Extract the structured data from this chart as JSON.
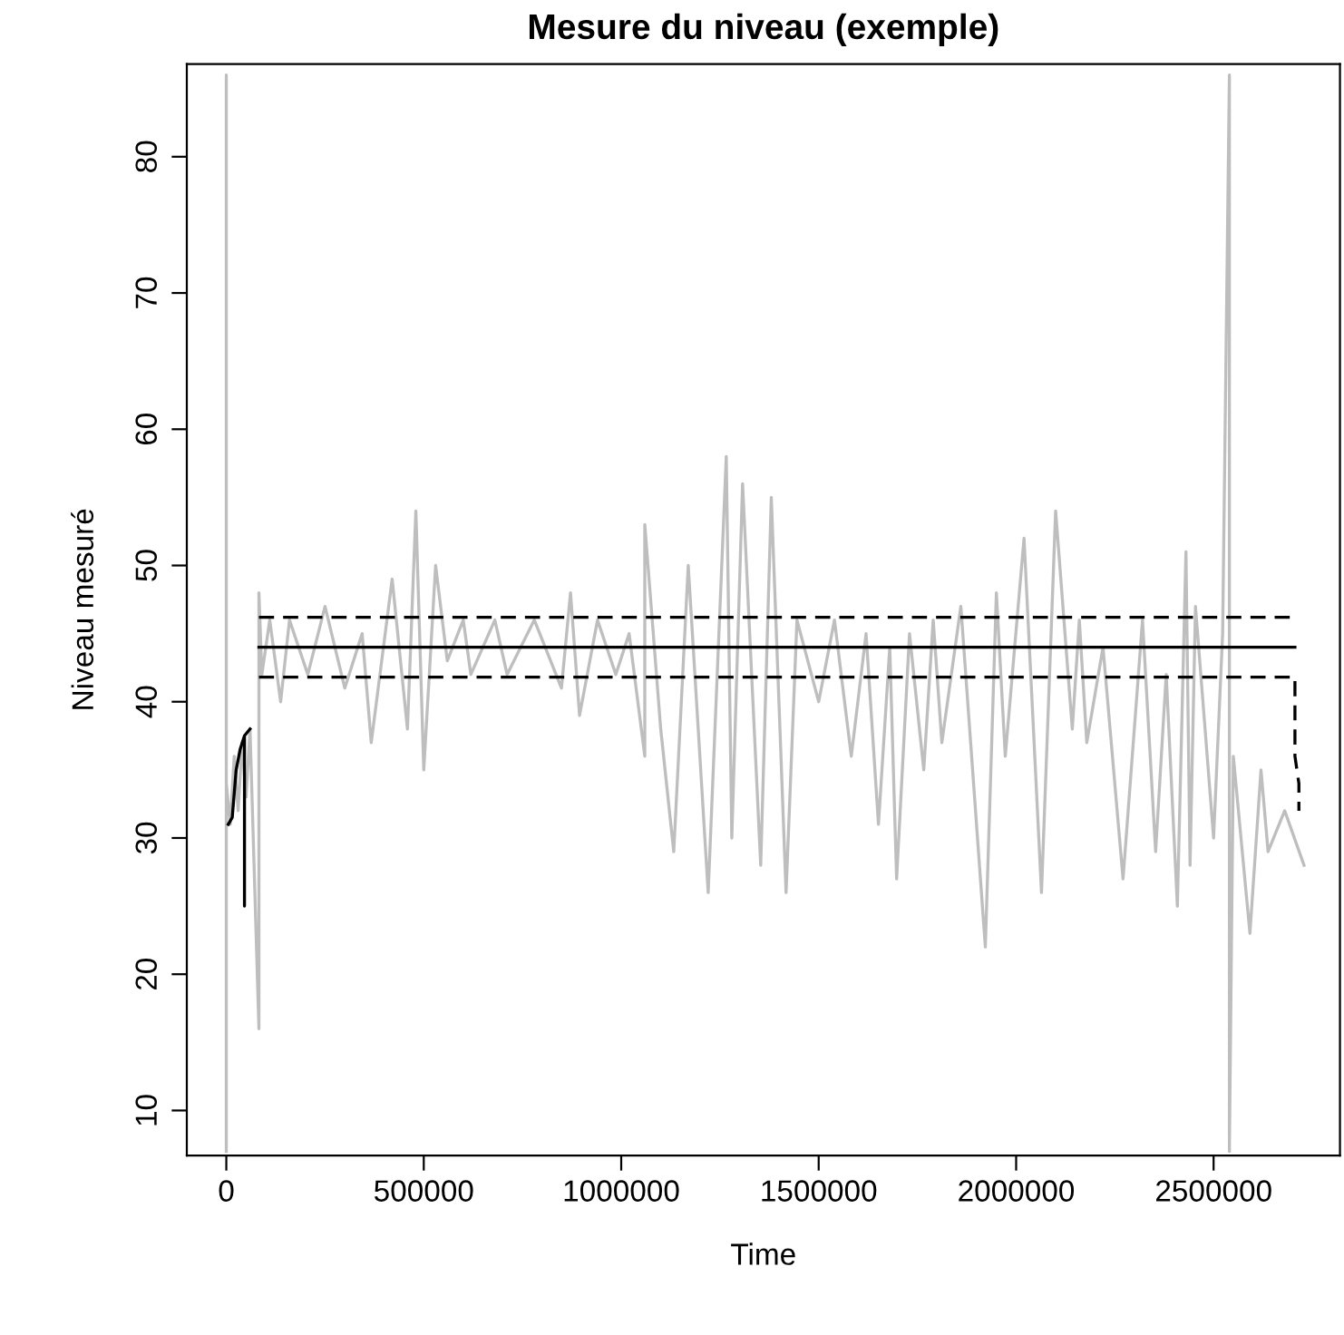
{
  "chart_data": {
    "type": "line",
    "title": "Mesure du niveau (exemple)",
    "xlabel": "Time",
    "ylabel": "Niveau mesuré",
    "xlim": [
      -100000,
      2820000
    ],
    "ylim": [
      6.7,
      86.8
    ],
    "xticks": [
      0,
      500000,
      1000000,
      1500000,
      2000000,
      2500000
    ],
    "yticks": [
      10,
      20,
      30,
      40,
      50,
      60,
      70,
      80
    ],
    "grid": false,
    "legend": false,
    "series": [
      {
        "color": "#bebebe",
        "x": [
          0,
          0,
          0,
          10000,
          20000,
          30000,
          40000,
          50000,
          60000,
          82600,
          82600,
          90000,
          110000,
          137600,
          160000,
          206400,
          250000,
          300000,
          344000,
          367000,
          420000,
          458700,
          480000,
          500000,
          530000,
          559600,
          600000,
          619300,
          680000,
          711000,
          780000,
          848600,
          871600,
          894500,
          940000,
          986300,
          1020000,
          1059700,
          1059700,
          1100000,
          1133000,
          1169700,
          1220200,
          1266000,
          1280000,
          1307300,
          1353200,
          1380000,
          1417400,
          1445000,
          1500000,
          1540000,
          1582600,
          1620000,
          1651400,
          1680000,
          1697300,
          1730000,
          1766100,
          1790000,
          1811900,
          1860000,
          1922000,
          1950000,
          1972500,
          2020000,
          2064200,
          2100000,
          2142200,
          2160000,
          2178900,
          2220000,
          2270700,
          2320000,
          2353200,
          2380000,
          2408300,
          2430000,
          2440400,
          2454100,
          2500000,
          2522900,
          2540000,
          2540000,
          2550000,
          2592000,
          2620000,
          2638000,
          2680000,
          2729000
        ],
        "values": [
          7,
          86,
          34,
          31,
          36,
          32,
          37,
          33,
          38,
          16,
          48,
          42,
          46,
          40,
          46,
          42,
          47,
          41,
          45,
          37,
          49,
          38,
          54,
          35,
          50,
          43,
          46,
          42,
          46,
          42,
          46,
          41,
          48,
          39,
          46,
          42,
          45,
          36,
          53,
          38,
          29,
          50,
          26,
          58,
          30,
          56,
          28,
          55,
          26,
          46,
          40,
          46,
          36,
          45,
          31,
          44,
          27,
          45,
          35,
          46,
          37,
          47,
          22,
          48,
          36,
          52,
          26,
          54,
          38,
          46,
          37,
          44,
          27,
          46,
          29,
          42,
          25,
          51,
          28,
          47,
          30,
          45,
          86,
          7,
          36,
          23,
          35,
          29,
          32,
          28
        ]
      },
      {
        "color": "#000000",
        "x": [
          5000,
          15000,
          25000,
          35000,
          46000,
          46000,
          46000,
          60000
        ],
        "values": [
          31,
          31.5,
          35,
          36.5,
          37.5,
          25,
          37.5,
          38
        ],
        "line_style": "solid"
      },
      {
        "color": "#000000",
        "x": [
          82600,
          2706000
        ],
        "values": [
          44,
          44
        ],
        "line_style": "solid"
      },
      {
        "color": "#000000",
        "x": [
          82600,
          2706000
        ],
        "values": [
          46.2,
          46.2
        ],
        "line_style": "dashed"
      },
      {
        "color": "#000000",
        "x": [
          82600,
          2706000,
          2706000,
          2716000,
          2716000
        ],
        "values": [
          41.8,
          41.8,
          36,
          34,
          32
        ],
        "line_style": "dashed"
      }
    ]
  }
}
